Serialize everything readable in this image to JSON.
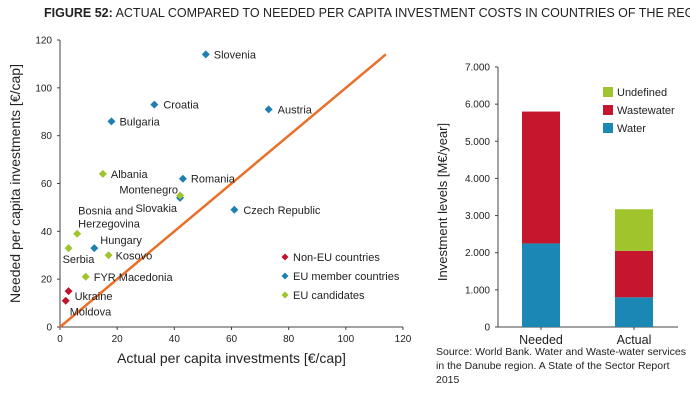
{
  "figure": {
    "number": "FIGURE 52:",
    "title": "ACTUAL COMPARED TO NEEDED PER CAPITA INVESTMENT COSTS IN COUNTRIES OF THE REGION",
    "source": "Source: World Bank. Water and Waste-water services in the Danube region. A State of the Sector Report 2015"
  },
  "colors": {
    "non_eu": "#c0152f",
    "eu_member": "#1f7fb0",
    "eu_candidate": "#9fc42c",
    "trend_line": "#e8702a",
    "water": "#1a87b5",
    "wastewater": "#c4162c",
    "undefined": "#9fc42c",
    "axis": "#444444",
    "text": "#222222"
  },
  "chart_data": [
    {
      "type": "scatter",
      "xlabel": "Actual per capita investments [€/cap]",
      "ylabel": "Needed per capita investments [€/cap]",
      "xlim": [
        0,
        120
      ],
      "ylim": [
        0,
        120
      ],
      "xticks": [
        0,
        20,
        40,
        60,
        80,
        100,
        120
      ],
      "yticks": [
        0,
        20,
        40,
        60,
        80,
        100,
        120
      ],
      "grid": false,
      "legend_position": "lower-right",
      "trend_line": {
        "x": [
          0,
          114
        ],
        "y": [
          0,
          114
        ]
      },
      "series": [
        {
          "name": "Non-EU countries",
          "color_key": "non_eu",
          "points": [
            {
              "label": "Ukraine",
              "x": 3,
              "y": 15
            },
            {
              "label": "Moldova",
              "x": 2,
              "y": 11
            }
          ]
        },
        {
          "name": "EU member countries",
          "color_key": "eu_member",
          "points": [
            {
              "label": "Slovenia",
              "x": 51,
              "y": 114
            },
            {
              "label": "Croatia",
              "x": 33,
              "y": 93
            },
            {
              "label": "Austria",
              "x": 73,
              "y": 91
            },
            {
              "label": "Bulgaria",
              "x": 18,
              "y": 86
            },
            {
              "label": "Romania",
              "x": 43,
              "y": 62
            },
            {
              "label": "Slovakia",
              "x": 42,
              "y": 54
            },
            {
              "label": "Czech Republic",
              "x": 61,
              "y": 49
            },
            {
              "label": "Hungary",
              "x": 12,
              "y": 33
            }
          ]
        },
        {
          "name": "EU candidates",
          "color_key": "eu_candidate",
          "points": [
            {
              "label": "Albania",
              "x": 15,
              "y": 64
            },
            {
              "label": "Montenegro",
              "x": 42,
              "y": 55
            },
            {
              "label": "Bosnia and Herzegovina",
              "x": 6,
              "y": 39
            },
            {
              "label": "Serbia",
              "x": 3,
              "y": 33
            },
            {
              "label": "Kosovo",
              "x": 17,
              "y": 30
            },
            {
              "label": "FYR Macedonia",
              "x": 9,
              "y": 21
            }
          ]
        }
      ]
    },
    {
      "type": "bar",
      "stacked": true,
      "ylabel": "Investment levels [M€/year]",
      "ylim": [
        0,
        7000
      ],
      "yticks": [
        "0",
        "1.000",
        "2.000",
        "3.000",
        "4.000",
        "5.000",
        "6.000",
        "7.000"
      ],
      "categories": [
        "Needed",
        "Actual"
      ],
      "legend_position": "top-right",
      "series": [
        {
          "name": "Water",
          "color_key": "water",
          "values": [
            2250,
            800
          ]
        },
        {
          "name": "Wastewater",
          "color_key": "wastewater",
          "values": [
            3550,
            1250
          ]
        },
        {
          "name": "Undefined",
          "color_key": "undefined",
          "values": [
            0,
            1120
          ]
        }
      ]
    }
  ]
}
